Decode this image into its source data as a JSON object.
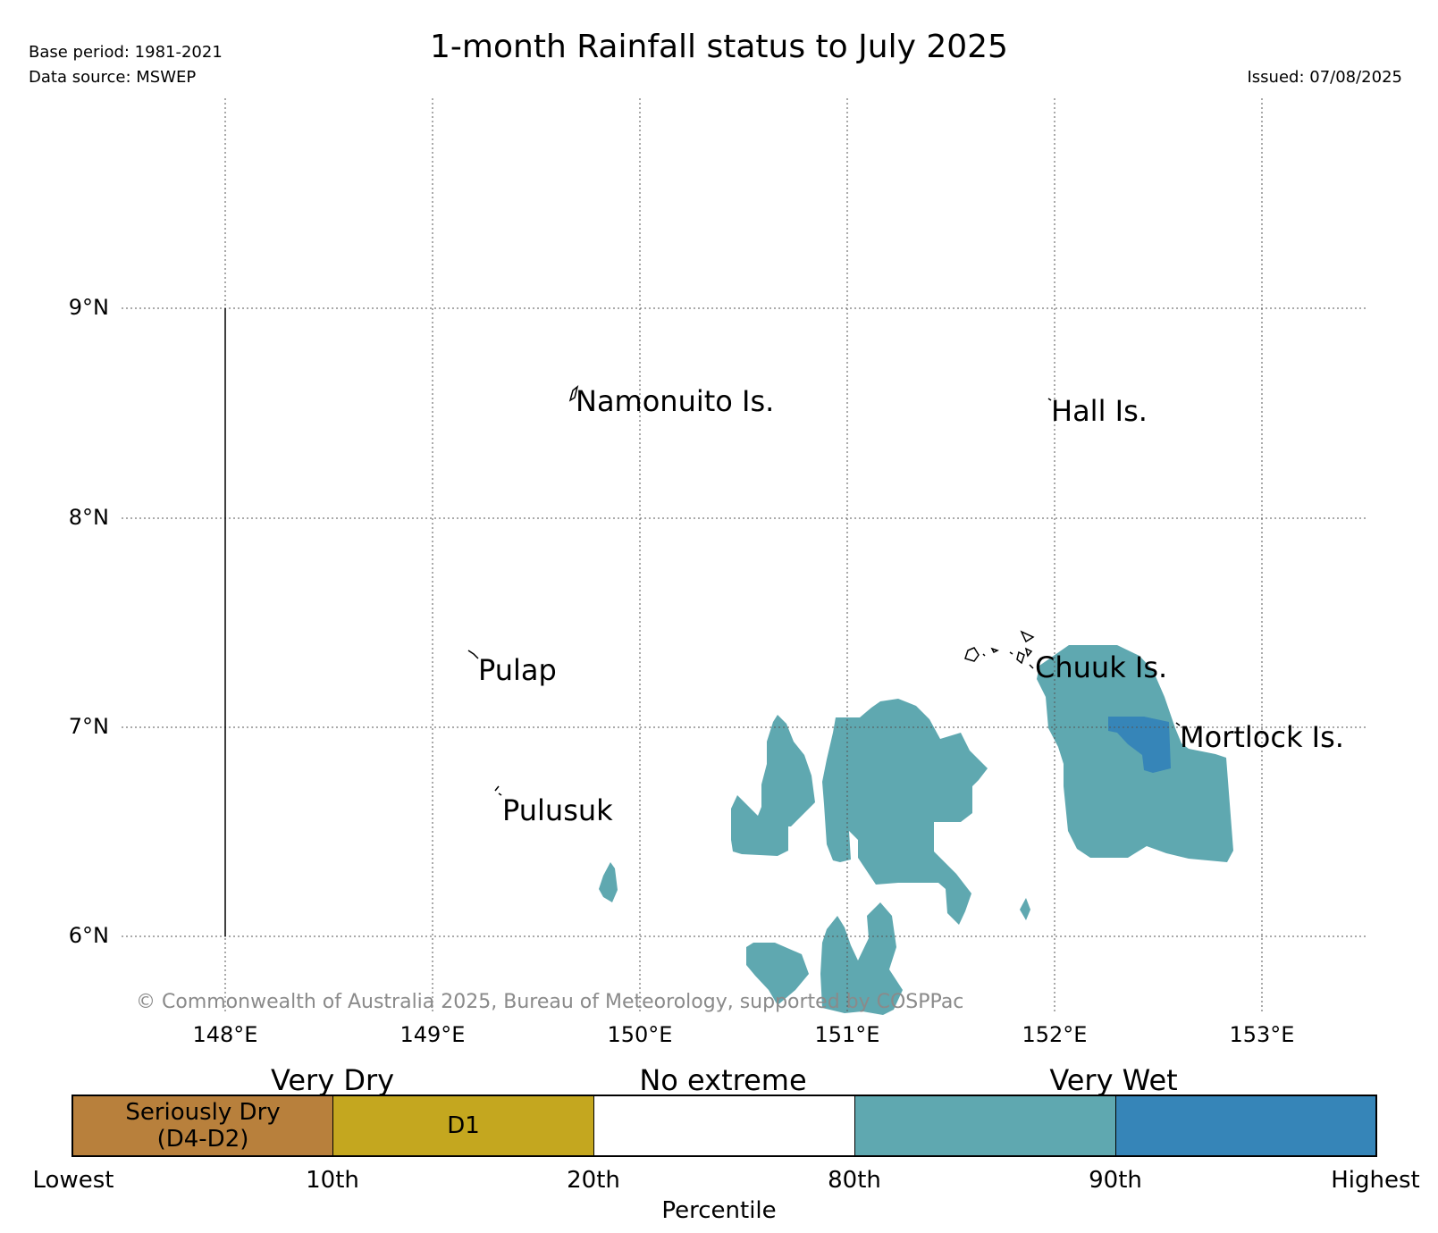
{
  "header": {
    "base_period": "Base period: 1981-2021",
    "data_source": "Data source: MSWEP",
    "title": "1-month Rainfall status to July 2025",
    "issued": "Issued: 07/08/2025"
  },
  "map": {
    "lat_labels": [
      "9°N",
      "8°N",
      "7°N",
      "6°N"
    ],
    "lon_labels": [
      "148°E",
      "149°E",
      "150°E",
      "151°E",
      "152°E",
      "153°E"
    ],
    "places": [
      "Namonuito Is.",
      "Hall Is.",
      "Pulap",
      "Chuuk Is.",
      "Mortlock Is.",
      "Pulusuk"
    ],
    "copyright": "© Commonwealth of Australia 2025, Bureau of Meteorology, supported by COSPPac",
    "colors": {
      "very_wet": "#5fa8b0",
      "highest": "#3685b8",
      "grid": "#555555"
    }
  },
  "legend": {
    "categories": [
      "Very Dry",
      "No extreme",
      "Very Wet"
    ],
    "segments": [
      {
        "label": "Seriously Dry\n(D4-D2)",
        "color": "#b8803c"
      },
      {
        "label": "D1",
        "color": "#c4a71f"
      },
      {
        "label": "",
        "color": "#ffffff"
      },
      {
        "label": "",
        "color": "#5fa8b0"
      },
      {
        "label": "",
        "color": "#3685b8"
      }
    ],
    "percentiles": [
      "Lowest",
      "10th",
      "20th",
      "80th",
      "90th",
      "Highest"
    ],
    "axis_title": "Percentile"
  }
}
